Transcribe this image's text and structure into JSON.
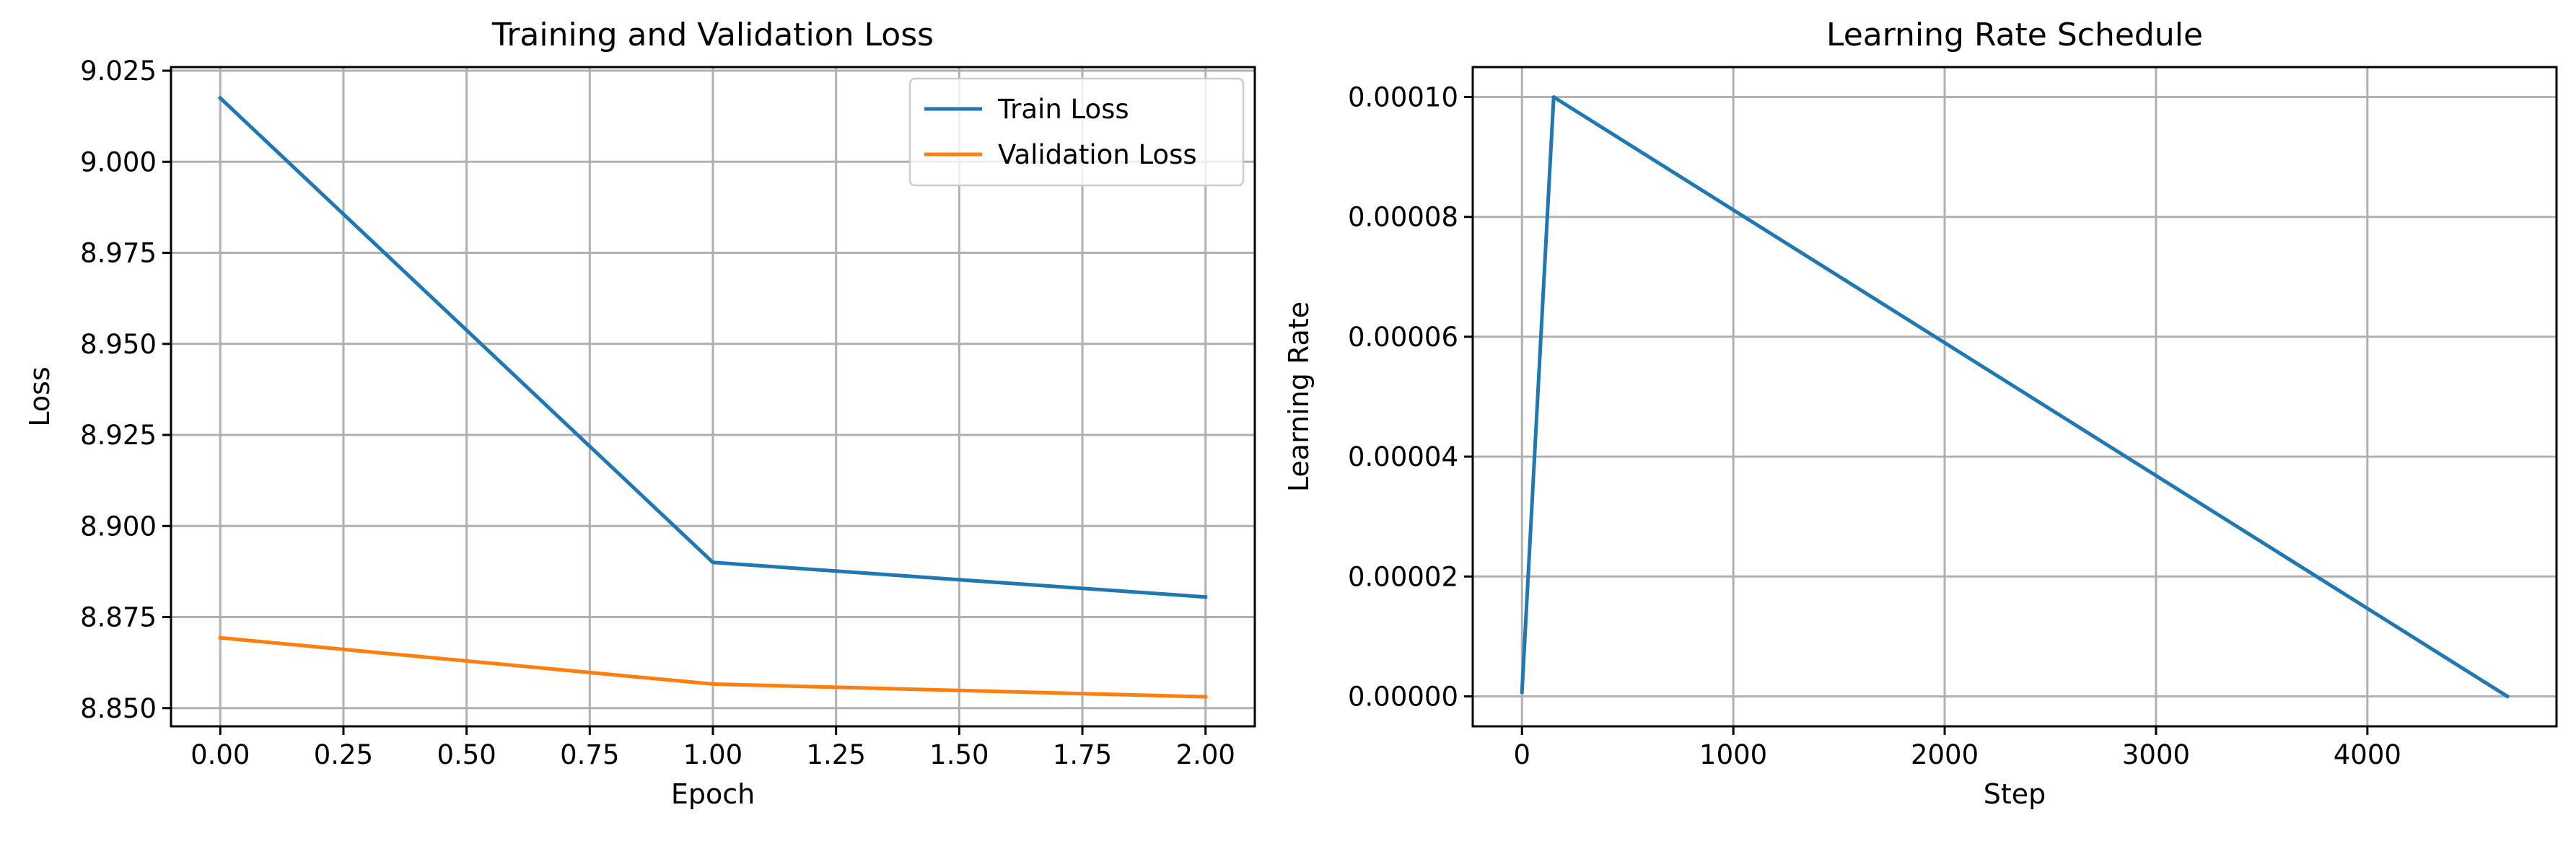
{
  "chart_data": [
    {
      "type": "line",
      "title": "Training and Validation Loss",
      "xlabel": "Epoch",
      "ylabel": "Loss",
      "xlim": [
        -0.1,
        2.1
      ],
      "ylim": [
        8.845,
        9.026
      ],
      "xticks": [
        0.0,
        0.25,
        0.5,
        0.75,
        1.0,
        1.25,
        1.5,
        1.75,
        2.0
      ],
      "xtick_labels": [
        "0.00",
        "0.25",
        "0.50",
        "0.75",
        "1.00",
        "1.25",
        "1.50",
        "1.75",
        "2.00"
      ],
      "yticks": [
        8.85,
        8.875,
        8.9,
        8.925,
        8.95,
        8.975,
        9.0,
        9.025
      ],
      "ytick_labels": [
        "8.850",
        "8.875",
        "8.900",
        "8.925",
        "8.950",
        "8.975",
        "9.000",
        "9.025"
      ],
      "grid": true,
      "legend_position": "top-right",
      "series": [
        {
          "name": "Train Loss",
          "color": "#1f77b4",
          "x": [
            0,
            1,
            2
          ],
          "y": [
            9.0175,
            8.89,
            8.8805
          ]
        },
        {
          "name": "Validation Loss",
          "color": "#ff7f0e",
          "x": [
            0,
            1,
            2
          ],
          "y": [
            8.8693,
            8.8566,
            8.8531
          ]
        }
      ]
    },
    {
      "type": "line",
      "title": "Learning Rate Schedule",
      "xlabel": "Step",
      "ylabel": "Learning Rate",
      "xlim": [
        -233,
        4895
      ],
      "ylim": [
        -5e-06,
        0.000105
      ],
      "xticks": [
        0,
        1000,
        2000,
        3000,
        4000
      ],
      "xtick_labels": [
        "0",
        "1000",
        "2000",
        "3000",
        "4000"
      ],
      "yticks": [
        0,
        2e-05,
        4e-05,
        6e-05,
        8e-05,
        0.0001
      ],
      "ytick_labels": [
        "0.00000",
        "0.00002",
        "0.00004",
        "0.00006",
        "0.00008",
        "0.00010"
      ],
      "grid": true,
      "series": [
        {
          "color": "#1f77b4",
          "x": [
            0,
            150,
            4662
          ],
          "y": [
            7e-07,
            0.0001,
            0
          ]
        }
      ]
    }
  ]
}
